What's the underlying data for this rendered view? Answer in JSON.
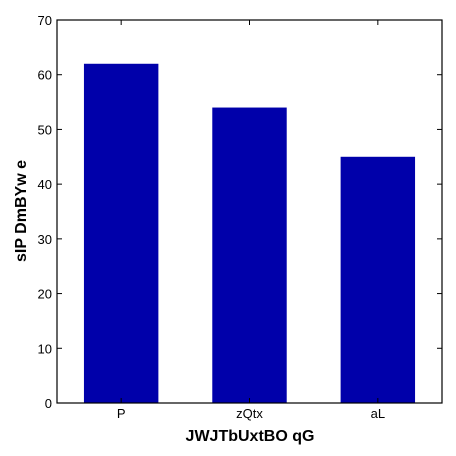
{
  "chart_data": {
    "type": "bar",
    "categories": [
      "P",
      "zQtx",
      "aL"
    ],
    "values": [
      62,
      54,
      45
    ],
    "xlabel": "JWJTbUxtBO qG",
    "ylabel": "sIP DmBYw e",
    "ylim": [
      0,
      70
    ],
    "yticks": [
      0,
      10,
      20,
      30,
      40,
      50,
      60,
      70
    ],
    "grid": false,
    "legend": "none",
    "bar_color": "#0000aa"
  }
}
